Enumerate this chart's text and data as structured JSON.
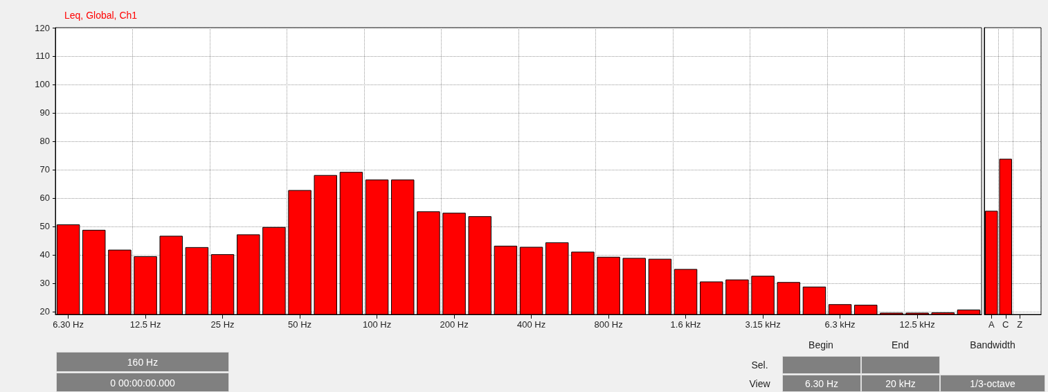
{
  "chart_data": [
    {
      "type": "bar",
      "title": "Leq, Global, Ch1",
      "categories": [
        "6.30 Hz",
        null,
        null,
        "12.5 Hz",
        null,
        null,
        "25 Hz",
        null,
        null,
        "50 Hz",
        null,
        null,
        "100 Hz",
        null,
        null,
        "200 Hz",
        null,
        null,
        "400 Hz",
        null,
        null,
        "800 Hz",
        null,
        null,
        "1.6 kHz",
        null,
        null,
        "3.15 kHz",
        null,
        null,
        "6.3 kHz",
        null,
        null,
        "12.5 kHz",
        null,
        null
      ],
      "values": [
        50.7,
        48.8,
        41.8,
        39.5,
        46.7,
        42.7,
        40.2,
        47.2,
        49.8,
        62.8,
        68.1,
        69.2,
        66.5,
        66.5,
        55.3,
        54.8,
        53.6,
        43.2,
        42.8,
        44.4,
        41.1,
        39.3,
        38.9,
        38.6,
        35.0,
        30.6,
        31.3,
        32.6,
        30.4,
        28.8,
        22.6,
        22.4,
        19.6,
        19.6,
        19.7,
        20.7
      ],
      "color": "#ff0000",
      "ylim": [
        19,
        120
      ],
      "yticks": [
        20,
        30,
        40,
        50,
        60,
        70,
        80,
        90,
        100,
        110,
        120
      ],
      "grid": true,
      "annotations": [
        "160 Hz",
        "0 00:00:00.000",
        "Begin",
        "End",
        "Bandwidth",
        "Sel.",
        "View",
        "6.30 Hz",
        "20 kHz",
        "1/3-octave"
      ]
    },
    {
      "type": "bar",
      "categories": [
        "A",
        "C",
        "Z",
        null
      ],
      "values": [
        55.5,
        73.8,
        null,
        null
      ],
      "color": "#ff0000",
      "ylim": [
        19,
        120
      ],
      "yticks": [
        20,
        30,
        40,
        50,
        60,
        70,
        80,
        90,
        100,
        110,
        120
      ],
      "grid": true,
      "tick_labels": "x"
    }
  ]
}
